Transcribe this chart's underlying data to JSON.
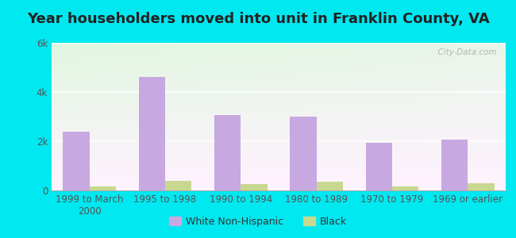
{
  "title": "Year householders moved into unit in Franklin County, VA",
  "categories": [
    "1999 to March\n2000",
    "1995 to 1998",
    "1990 to 1994",
    "1980 to 1989",
    "1970 to 1979",
    "1969 or earlier"
  ],
  "white_values": [
    2400,
    4600,
    3050,
    3000,
    1950,
    2050
  ],
  "black_values": [
    150,
    400,
    250,
    350,
    175,
    280
  ],
  "white_color": "#c8a8e0",
  "black_color": "#c8d890",
  "ylim": [
    0,
    6000
  ],
  "yticks": [
    0,
    2000,
    4000,
    6000
  ],
  "ytick_labels": [
    "0",
    "2k",
    "4k",
    "6k"
  ],
  "bar_width": 0.35,
  "background_outer": "#00e8f0",
  "watermark": "  City-Data.com",
  "legend_labels": [
    "White Non-Hispanic",
    "Black"
  ],
  "title_fontsize": 13,
  "tick_fontsize": 8.5,
  "legend_fontsize": 9
}
